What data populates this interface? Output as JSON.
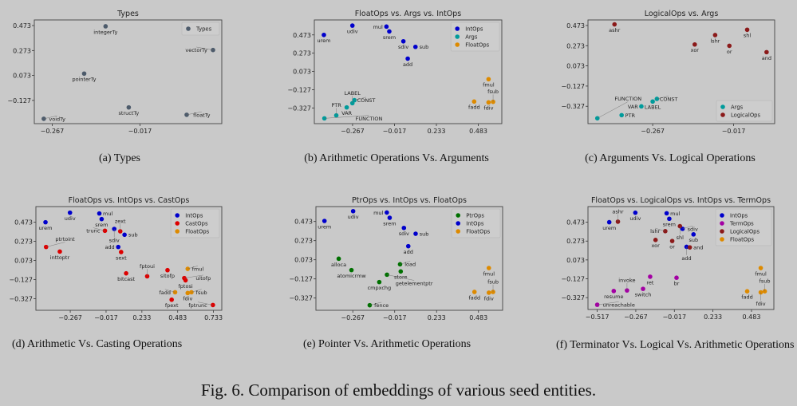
{
  "figure_caption": "Fig. 6.  Comparison of embeddings of various seed entities.",
  "subcaptions": [
    "(a) Types",
    "(b) Arithmetic Operations Vs. Arguments",
    "(c) Arguments Vs. Logical Operations",
    "(d) Arithmetic Vs. Casting Operations",
    "(e) Pointer Vs. Arithmetic Operations",
    "(f) Terminator Vs. Logical Vs. Arithmetic Operations"
  ],
  "chart_data": [
    {
      "type": "scatter",
      "title": "Types",
      "grid": false,
      "legend": "top-right",
      "xlim": [
        -0.318,
        0.216
      ],
      "ylim": [
        -0.313,
        0.518
      ],
      "xticks": [
        -0.267,
        -0.017
      ],
      "xtick_labels": [
        "−0.267",
        "−0.017"
      ],
      "yticks": [
        0.473,
        0.273,
        0.073,
        -0.127
      ],
      "ytick_labels": [
        "0.473",
        "0.273",
        "0.073",
        "−0.127"
      ],
      "series": [
        {
          "name": "Types",
          "color": "#4d5b6b",
          "points": [
            {
              "label": "integerTy",
              "x": -0.115,
              "y": 0.467
            },
            {
              "label": "vectorTy",
              "x": 0.191,
              "y": 0.277
            },
            {
              "label": "pointerTy",
              "x": -0.176,
              "y": 0.088
            },
            {
              "label": "structTy",
              "x": -0.049,
              "y": -0.183
            },
            {
              "label": "floatTy",
              "x": 0.116,
              "y": -0.242
            },
            {
              "label": "voidTy",
              "x": -0.291,
              "y": -0.274
            }
          ]
        }
      ]
    },
    {
      "type": "scatter",
      "title": "FloatOps vs. Args vs. IntOps",
      "grid": false,
      "legend": "top-right",
      "xlim": [
        -0.495,
        0.623
      ],
      "ylim": [
        -0.499,
        0.637
      ],
      "xticks": [
        -0.267,
        -0.017,
        0.233,
        0.483
      ],
      "xtick_labels": [
        "−0.267",
        "−0.017",
        "0.233",
        "0.483"
      ],
      "yticks": [
        0.473,
        0.273,
        0.073,
        -0.127,
        -0.327
      ],
      "ytick_labels": [
        "0.473",
        "0.273",
        "0.073",
        "−0.127",
        "−0.327"
      ],
      "series": [
        {
          "name": "IntOps",
          "color": "#0000cc",
          "points": [
            {
              "label": "urem",
              "x": -0.438,
              "y": 0.473
            },
            {
              "label": "udiv",
              "x": -0.268,
              "y": 0.575
            },
            {
              "label": "mul",
              "x": -0.065,
              "y": 0.564
            },
            {
              "label": "srem",
              "x": -0.048,
              "y": 0.511
            },
            {
              "label": "sdiv",
              "x": 0.036,
              "y": 0.403
            },
            {
              "label": "sub",
              "x": 0.108,
              "y": 0.342
            },
            {
              "label": "add",
              "x": 0.062,
              "y": 0.213
            }
          ]
        },
        {
          "name": "Args",
          "color": "#009b9b",
          "points": [
            {
              "label": "CONST",
              "x": -0.256,
              "y": -0.242
            },
            {
              "label": "LABEL",
              "x": -0.268,
              "y": -0.275
            },
            {
              "label": "VAR",
              "x": -0.302,
              "y": -0.321
            },
            {
              "label": "PTR",
              "x": -0.364,
              "y": -0.409
            },
            {
              "label": "FUNCTION",
              "x": -0.435,
              "y": -0.441
            }
          ]
        },
        {
          "name": "FloatOps",
          "color": "#dd8a00",
          "points": [
            {
              "label": "fmul",
              "x": 0.544,
              "y": -0.012
            },
            {
              "label": "fadd",
              "x": 0.458,
              "y": -0.257
            },
            {
              "label": "fdiv",
              "x": 0.544,
              "y": -0.266
            },
            {
              "label": "fsub",
              "x": 0.571,
              "y": -0.26
            }
          ]
        }
      ]
    },
    {
      "type": "scatter",
      "title": "LogicalOps vs. Args",
      "grid": false,
      "legend": "bottom-right",
      "xlim": [
        -0.467,
        0.11
      ],
      "ylim": [
        -0.499,
        0.528
      ],
      "xticks": [
        -0.267,
        -0.017
      ],
      "xtick_labels": [
        "−0.267",
        "−0.017"
      ],
      "yticks": [
        0.473,
        0.273,
        0.073,
        -0.127,
        -0.327
      ],
      "ytick_labels": [
        "0.473",
        "0.273",
        "0.073",
        "−0.127",
        "−0.327"
      ],
      "series": [
        {
          "name": "Args",
          "color": "#009b9b",
          "points": [
            {
              "label": "CONST",
              "x": -0.254,
              "y": -0.254
            },
            {
              "label": "LABEL",
              "x": -0.267,
              "y": -0.28
            },
            {
              "label": "VAR",
              "x": -0.302,
              "y": -0.328
            },
            {
              "label": "PTR",
              "x": -0.363,
              "y": -0.415
            },
            {
              "label": "FUNCTION",
              "x": -0.438,
              "y": -0.446
            }
          ]
        },
        {
          "name": "LogicalOps",
          "color": "#8b1a1a",
          "points": [
            {
              "label": "ashr",
              "x": -0.385,
              "y": 0.484
            },
            {
              "label": "xor",
              "x": -0.137,
              "y": 0.285
            },
            {
              "label": "lshr",
              "x": -0.074,
              "y": 0.378
            },
            {
              "label": "or",
              "x": -0.03,
              "y": 0.272
            },
            {
              "label": "shl",
              "x": 0.025,
              "y": 0.431
            },
            {
              "label": "and",
              "x": 0.085,
              "y": 0.209
            }
          ]
        }
      ]
    },
    {
      "type": "scatter",
      "title": "FloatOps vs. IntOps vs. CastOps",
      "grid": false,
      "legend": "top-right",
      "xlim": [
        -0.507,
        0.791
      ],
      "ylim": [
        -0.449,
        0.637
      ],
      "xticks": [
        -0.267,
        -0.017,
        0.233,
        0.483,
        0.733
      ],
      "xtick_labels": [
        "−0.267",
        "−0.017",
        "0.233",
        "0.483",
        "0.733"
      ],
      "yticks": [
        0.473,
        0.273,
        0.073,
        -0.127,
        -0.327
      ],
      "ytick_labels": [
        "0.473",
        "0.273",
        "0.073",
        "−0.127",
        "−0.327"
      ],
      "series": [
        {
          "name": "IntOps",
          "color": "#0000cc",
          "points": [
            {
              "label": "urem",
              "x": -0.44,
              "y": 0.473
            },
            {
              "label": "udiv",
              "x": -0.269,
              "y": 0.573
            },
            {
              "label": "mul",
              "x": -0.064,
              "y": 0.565
            },
            {
              "label": "srem",
              "x": -0.048,
              "y": 0.506
            },
            {
              "label": "sdiv",
              "x": 0.04,
              "y": 0.403
            },
            {
              "label": "sub",
              "x": 0.112,
              "y": 0.342
            },
            {
              "label": "add",
              "x": 0.068,
              "y": 0.214
            }
          ]
        },
        {
          "name": "CastOps",
          "color": "#dd0000",
          "points": [
            {
              "label": "ptrtoint",
              "x": -0.436,
              "y": 0.214
            },
            {
              "label": "inttoptr",
              "x": -0.34,
              "y": 0.166
            },
            {
              "label": "trunc",
              "x": -0.025,
              "y": 0.384
            },
            {
              "label": "zext",
              "x": 0.082,
              "y": 0.378
            },
            {
              "label": "sext",
              "x": 0.088,
              "y": 0.161
            },
            {
              "label": "bitcast",
              "x": 0.123,
              "y": -0.062
            },
            {
              "label": "fptoui",
              "x": 0.27,
              "y": -0.093
            },
            {
              "label": "sitofp",
              "x": 0.412,
              "y": -0.029
            },
            {
              "label": "uitofp",
              "x": 0.529,
              "y": -0.112
            },
            {
              "label": "fptosi",
              "x": 0.538,
              "y": -0.135
            },
            {
              "label": "fpext",
              "x": 0.441,
              "y": -0.338
            },
            {
              "label": "fptrunc",
              "x": 0.729,
              "y": -0.394
            }
          ]
        },
        {
          "name": "FloatOps",
          "color": "#dd8a00",
          "points": [
            {
              "label": "fmul",
              "x": 0.553,
              "y": -0.015
            },
            {
              "label": "fadd",
              "x": 0.465,
              "y": -0.26
            },
            {
              "label": "fdiv",
              "x": 0.553,
              "y": -0.268
            },
            {
              "label": "fsub",
              "x": 0.579,
              "y": -0.26
            }
          ]
        }
      ]
    },
    {
      "type": "scatter",
      "title": "PtrOps vs. IntOps vs. FloatOps",
      "grid": false,
      "legend": "top-right",
      "xlim": [
        -0.487,
        0.627
      ],
      "ylim": [
        -0.455,
        0.629
      ],
      "xticks": [
        -0.267,
        -0.017,
        0.233,
        0.483
      ],
      "xtick_labels": [
        "−0.267",
        "−0.017",
        "0.233",
        "0.483"
      ],
      "yticks": [
        0.473,
        0.273,
        0.073,
        -0.127,
        -0.327
      ],
      "ytick_labels": [
        "0.473",
        "0.273",
        "0.073",
        "−0.127",
        "−0.327"
      ],
      "series": [
        {
          "name": "PtrOps",
          "color": "#007000",
          "points": [
            {
              "label": "alloca",
              "x": -0.351,
              "y": 0.084
            },
            {
              "label": "atomicrmw",
              "x": -0.275,
              "y": -0.035
            },
            {
              "label": "load",
              "x": 0.015,
              "y": 0.026
            },
            {
              "label": "store",
              "x": 0.019,
              "y": -0.049
            },
            {
              "label": "getelementptr",
              "x": -0.063,
              "y": -0.083
            },
            {
              "label": "cmpxchg",
              "x": -0.109,
              "y": -0.16
            },
            {
              "label": "fence",
              "x": -0.166,
              "y": -0.402
            }
          ]
        },
        {
          "name": "IntOps",
          "color": "#0000cc",
          "points": [
            {
              "label": "urem",
              "x": -0.436,
              "y": 0.479
            },
            {
              "label": "udiv",
              "x": -0.265,
              "y": 0.581
            },
            {
              "label": "mul",
              "x": -0.064,
              "y": 0.567
            },
            {
              "label": "srem",
              "x": -0.047,
              "y": 0.512
            },
            {
              "label": "sdiv",
              "x": 0.038,
              "y": 0.406
            },
            {
              "label": "sub",
              "x": 0.108,
              "y": 0.345
            },
            {
              "label": "add",
              "x": 0.064,
              "y": 0.215
            }
          ]
        },
        {
          "name": "FloatOps",
          "color": "#dd8a00",
          "points": [
            {
              "label": "fmul",
              "x": 0.545,
              "y": -0.013
            },
            {
              "label": "fadd",
              "x": 0.459,
              "y": -0.263
            },
            {
              "label": "fdiv",
              "x": 0.545,
              "y": -0.271
            },
            {
              "label": "fsub",
              "x": 0.57,
              "y": -0.263
            }
          ]
        }
      ]
    },
    {
      "type": "scatter",
      "title": "FloatOps vs. LogicalOps vs. IntOps vs. TermOps",
      "grid": false,
      "legend": "top-right",
      "xlim": [
        -0.577,
        0.628
      ],
      "ylim": [
        -0.453,
        0.639
      ],
      "xticks": [
        -0.517,
        -0.267,
        -0.017,
        0.233,
        0.483
      ],
      "xtick_labels": [
        "−0.517",
        "−0.267",
        "−0.017",
        "0.233",
        "0.483"
      ],
      "yticks": [
        0.473,
        0.273,
        0.073,
        -0.127,
        -0.327
      ],
      "ytick_labels": [
        "0.473",
        "0.273",
        "0.073",
        "−0.127",
        "−0.327"
      ],
      "series": [
        {
          "name": "IntOps",
          "color": "#0000cc",
          "points": [
            {
              "label": "urem",
              "x": -0.439,
              "y": 0.473
            },
            {
              "label": "udiv",
              "x": -0.27,
              "y": 0.574
            },
            {
              "label": "mul",
              "x": -0.067,
              "y": 0.568
            },
            {
              "label": "srem",
              "x": -0.05,
              "y": 0.51
            },
            {
              "label": "sdiv",
              "x": 0.036,
              "y": 0.403
            },
            {
              "label": "sub",
              "x": 0.107,
              "y": 0.344
            },
            {
              "label": "add",
              "x": 0.062,
              "y": 0.212
            }
          ]
        },
        {
          "name": "TermOps",
          "color": "#a300a3",
          "points": [
            {
              "label": "ret",
              "x": -0.174,
              "y": -0.105
            },
            {
              "label": "br",
              "x": -0.003,
              "y": -0.116
            },
            {
              "label": "switch",
              "x": -0.22,
              "y": -0.234
            },
            {
              "label": "invoke",
              "x": -0.324,
              "y": -0.251
            },
            {
              "label": "resume",
              "x": -0.41,
              "y": -0.257
            },
            {
              "label": "unreachable",
              "x": -0.517,
              "y": -0.403
            }
          ]
        },
        {
          "name": "LogicalOps",
          "color": "#8b1a1a",
          "points": [
            {
              "label": "ashr",
              "x": -0.383,
              "y": 0.479
            },
            {
              "label": "lshr",
              "x": -0.076,
              "y": 0.378
            },
            {
              "label": "shl",
              "x": 0.019,
              "y": 0.431
            },
            {
              "label": "xor",
              "x": -0.139,
              "y": 0.285
            },
            {
              "label": "or",
              "x": -0.031,
              "y": 0.274
            },
            {
              "label": "and",
              "x": 0.083,
              "y": 0.206
            }
          ]
        },
        {
          "name": "FloatOps",
          "color": "#dd8a00",
          "points": [
            {
              "label": "fmul",
              "x": 0.543,
              "y": -0.013
            },
            {
              "label": "fadd",
              "x": 0.455,
              "y": -0.26
            },
            {
              "label": "fdiv",
              "x": 0.543,
              "y": -0.271
            },
            {
              "label": "fsub",
              "x": 0.569,
              "y": -0.26
            }
          ]
        }
      ]
    }
  ]
}
